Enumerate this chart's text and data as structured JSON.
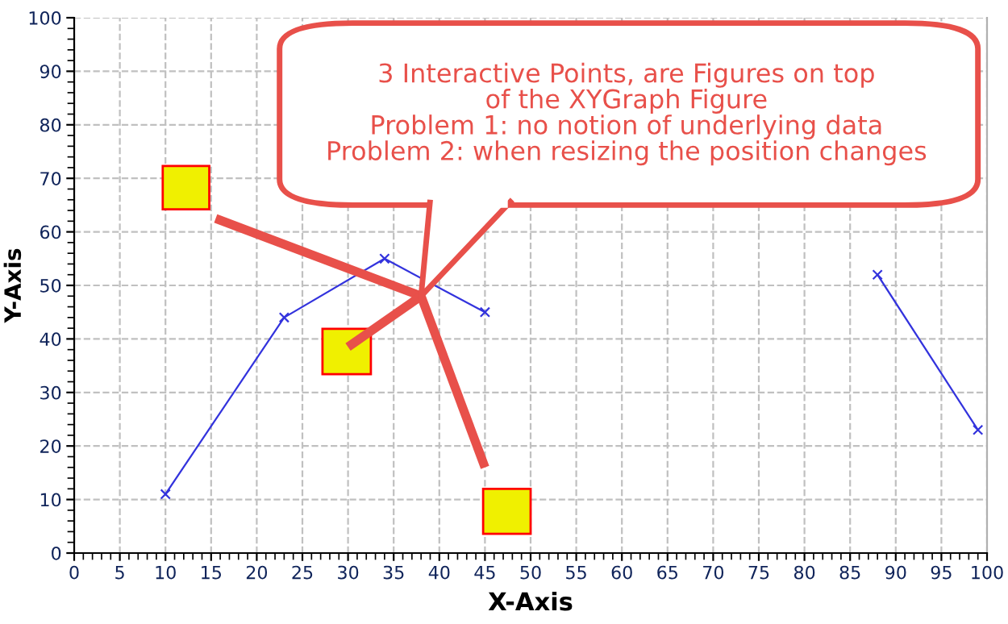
{
  "chart_data": {
    "type": "line",
    "xlabel": "X-Axis",
    "ylabel": "Y-Axis",
    "x": [
      10,
      23,
      34,
      45,
      67,
      88,
      99
    ],
    "series": [
      {
        "color": "#3333dd",
        "values": [
          11,
          44,
          55,
          45,
          null,
          52,
          23
        ]
      }
    ],
    "xlim": [
      0,
      100
    ],
    "ylim": [
      0,
      100
    ],
    "xticks": [
      0,
      5,
      10,
      15,
      20,
      25,
      30,
      35,
      40,
      45,
      50,
      55,
      60,
      65,
      70,
      75,
      80,
      85,
      90,
      95,
      100
    ],
    "yticks": [
      0,
      10,
      20,
      30,
      40,
      50,
      60,
      70,
      80,
      90,
      100
    ],
    "grid": true,
    "marker": "cross",
    "line_style": "solid",
    "legend": false,
    "annotations": [
      "3 Interactive Points, are Figures on top\nof the XYGraph Figure\nProblem 1: no notion of underlying data\nProblem 2: when resizing the position changes"
    ]
  }
}
